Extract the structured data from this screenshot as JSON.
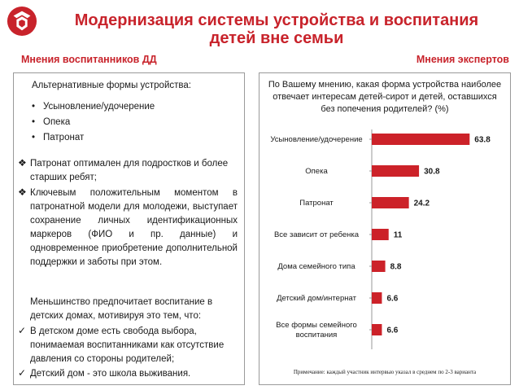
{
  "header": {
    "title_line1": "Модернизация системы устройства и воспитания",
    "title_line2": "детей вне семьи",
    "left_subtitle": "Мнения воспитанников ДД",
    "right_subtitle": "Мнения экспертов"
  },
  "left": {
    "alt_heading": "Альтернативные формы устройства:",
    "alt_items": [
      "Усыновление/удочерение",
      "Опека",
      "Патронат"
    ],
    "point1": "Патронат оптимален для подростков и более старших ребят;",
    "point2": "Ключевым положительным моментом в патронатной модели для молодежи, выступает сохранение личных идентификационных маркеров (ФИО и пр. данные) и одновременное приобретение дополнительной поддержки и заботы при этом.",
    "minority": "Меньшинство предпочитает воспитание в детских домах, мотивируя это тем, что:",
    "check1": "В детском доме есть свобода выбора, понимаемая воспитанниками как отсутствие давления со стороны родителей;",
    "check2": "Детский дом  - это школа выживания."
  },
  "colors": {
    "accent": "#c8232b",
    "bar": "#cc2229"
  },
  "icons": {
    "logo": "company-logo",
    "diamond": "diamond-bullet-icon",
    "check": "checkmark-icon"
  },
  "chart_data": {
    "type": "bar",
    "orientation": "horizontal",
    "title": "По Вашему мнению, какая форма устройства наиболее отвечает интересам детей-сирот и детей, оставшихся без попечения родителей? (%)",
    "categories": [
      "Усыновление/удочерение",
      "Опека",
      "Патронат",
      "Все зависит от ребенка",
      "Дома семейного типа",
      "Детский дом/интернат",
      "Все формы семейного воспитания"
    ],
    "values": [
      63.8,
      30.8,
      24.2,
      11,
      8.8,
      6.6,
      6.6
    ],
    "value_labels": [
      "63.8",
      "30.8",
      "24.2",
      "11",
      "8.8",
      "6.6",
      "6.6"
    ],
    "xlim": [
      0,
      70
    ],
    "grid": false,
    "legend": "none",
    "note": "Примечание: каждый участник интервью указал в среднем по 2-3 варианта"
  }
}
